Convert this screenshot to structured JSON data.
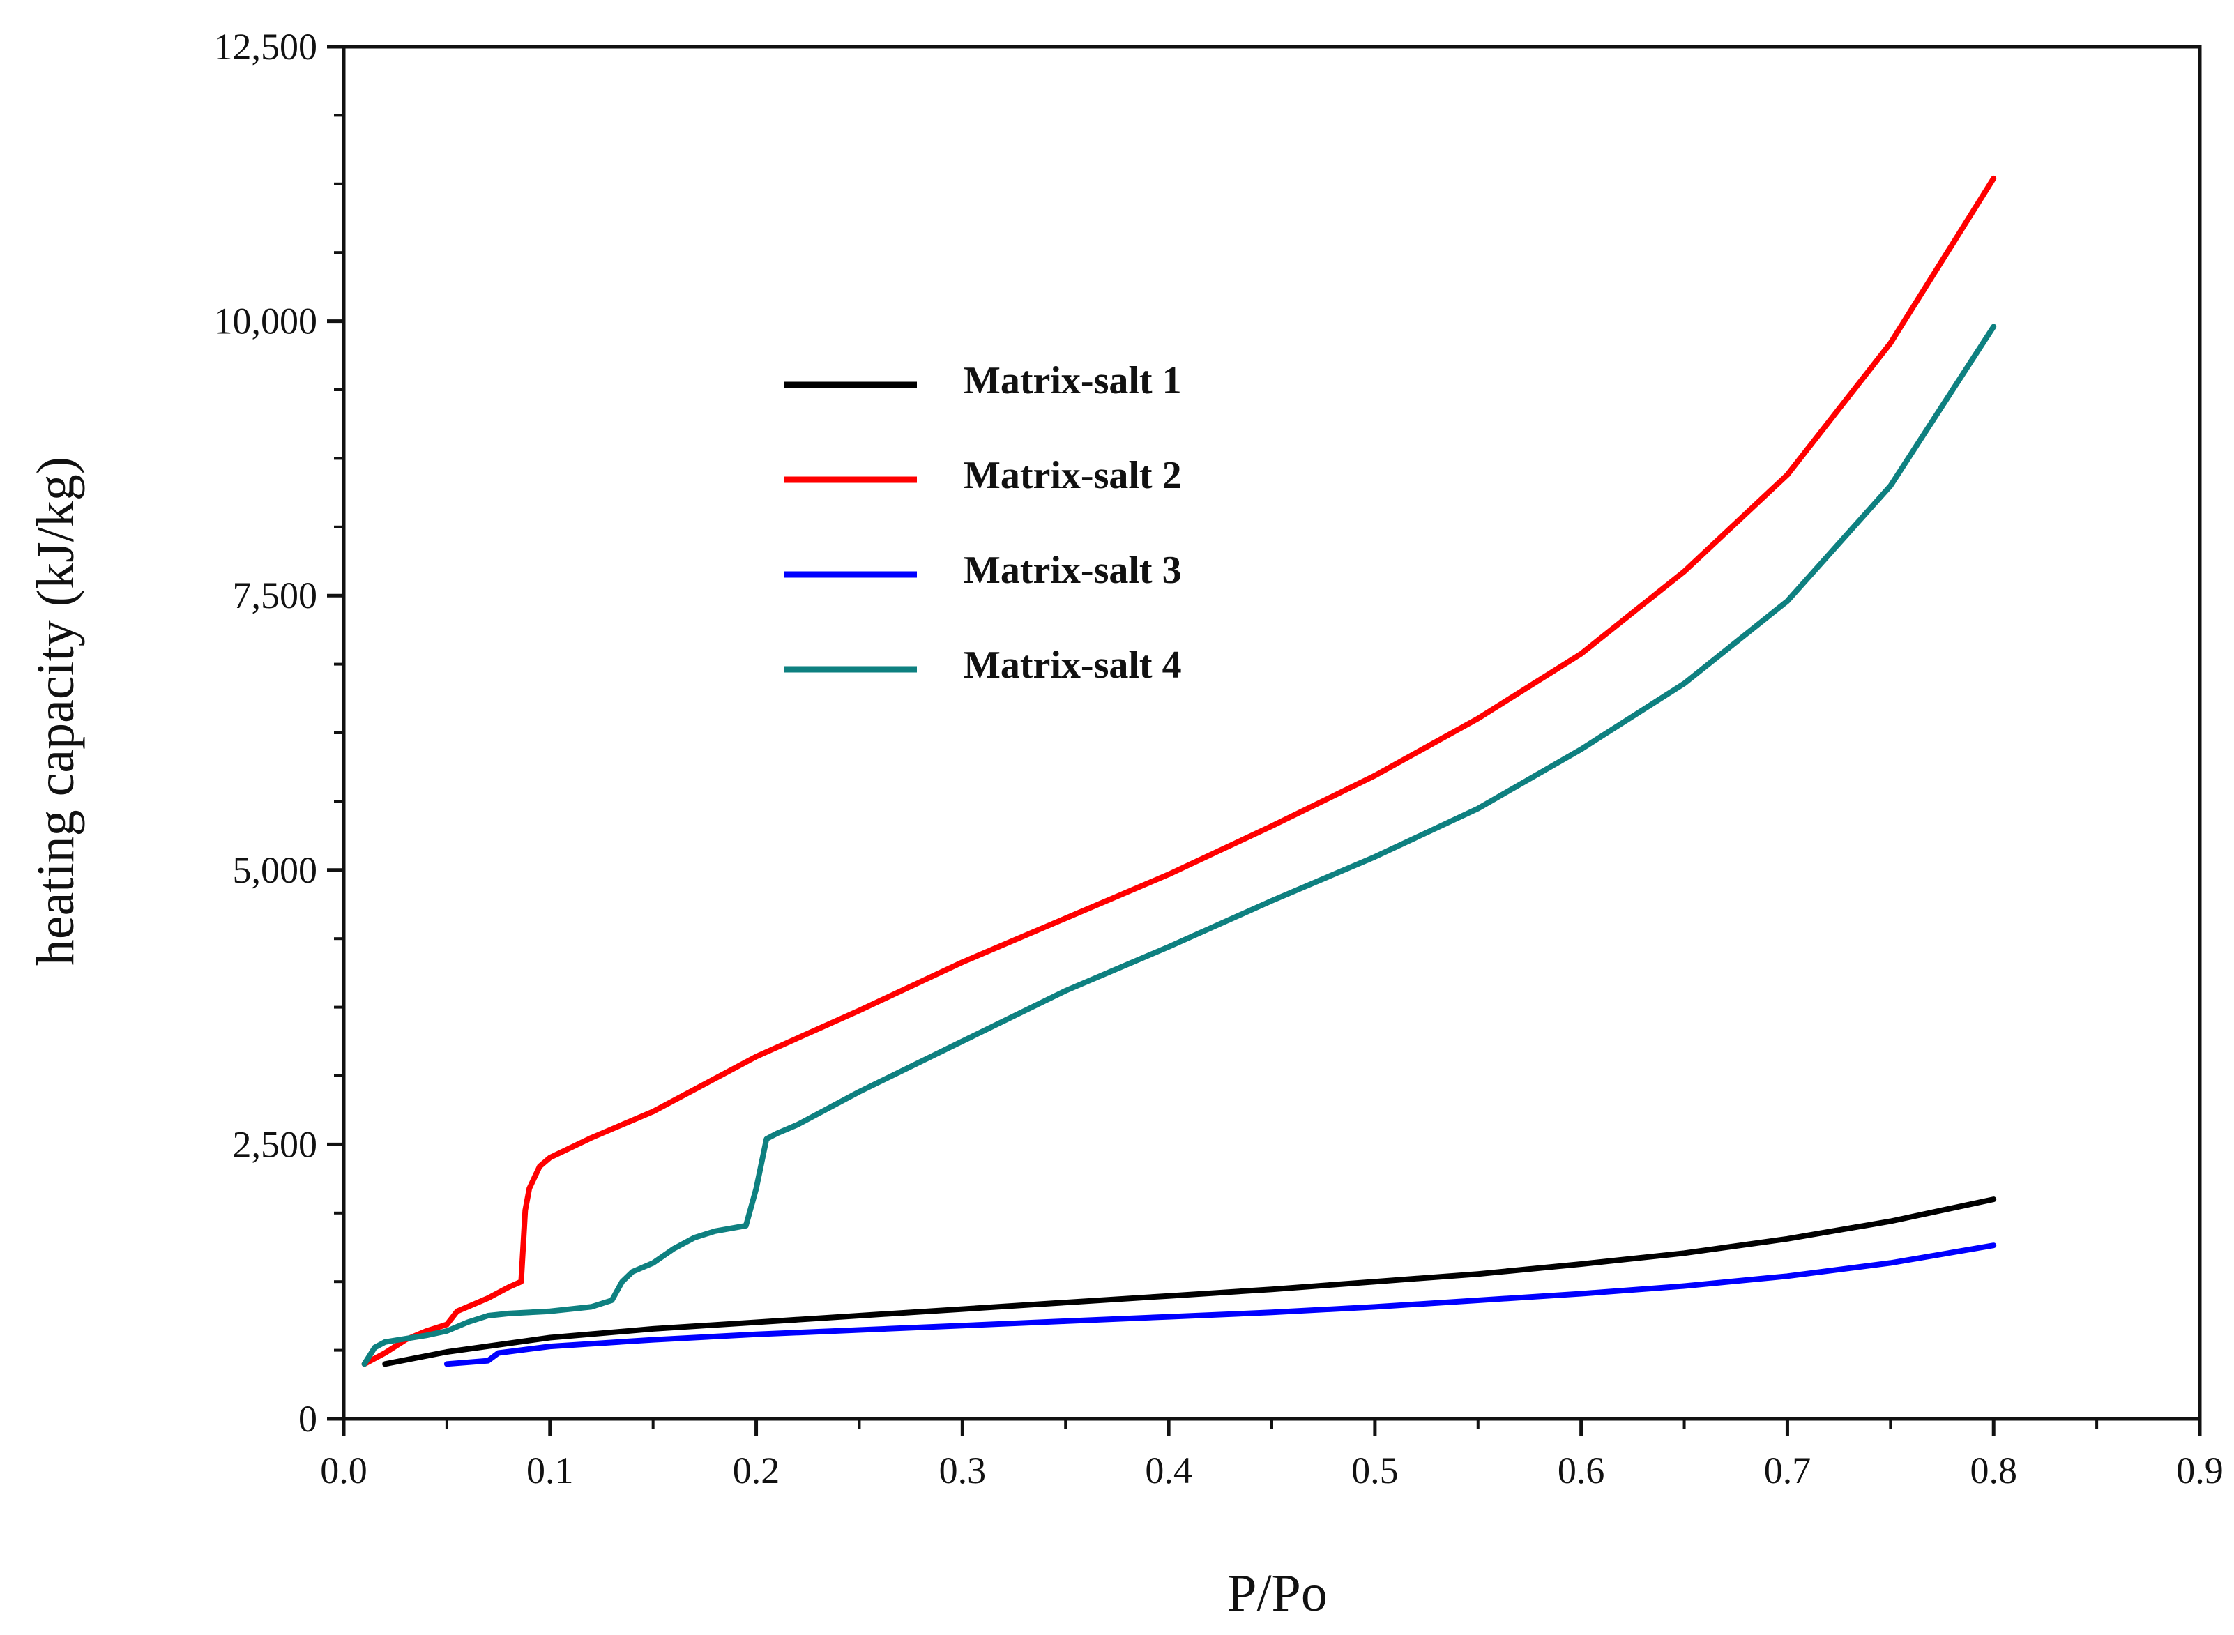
{
  "chart_data": {
    "type": "line",
    "title": "",
    "xlabel": "P/Po",
    "ylabel": "heating capacity (kJ/kg)",
    "xlim": [
      0,
      0.9
    ],
    "ylim": [
      0,
      12500
    ],
    "x_ticks": [
      {
        "value": 0.0,
        "label": "0.0"
      },
      {
        "value": 0.1,
        "label": "0.1"
      },
      {
        "value": 0.2,
        "label": "0.2"
      },
      {
        "value": 0.3,
        "label": "0.3"
      },
      {
        "value": 0.4,
        "label": "0.4"
      },
      {
        "value": 0.5,
        "label": "0.5"
      },
      {
        "value": 0.6,
        "label": "0.6"
      },
      {
        "value": 0.7,
        "label": "0.7"
      },
      {
        "value": 0.8,
        "label": "0.8"
      },
      {
        "value": 0.9,
        "label": "0.9"
      }
    ],
    "y_ticks": [
      {
        "value": 0,
        "label": "0"
      },
      {
        "value": 2500,
        "label": "2,500"
      },
      {
        "value": 5000,
        "label": "5,000"
      },
      {
        "value": 7500,
        "label": "7,500"
      },
      {
        "value": 10000,
        "label": "10,000"
      },
      {
        "value": 12500,
        "label": "12,500"
      }
    ],
    "grid": false,
    "legend_position": "upper-left-center",
    "series": [
      {
        "name": "Matrix-salt 1",
        "color": "#000000",
        "x": [
          0.02,
          0.05,
          0.1,
          0.15,
          0.2,
          0.25,
          0.3,
          0.35,
          0.4,
          0.45,
          0.5,
          0.55,
          0.6,
          0.65,
          0.7,
          0.75,
          0.8
        ],
        "y": [
          500,
          610,
          740,
          820,
          880,
          940,
          1000,
          1060,
          1120,
          1180,
          1250,
          1320,
          1410,
          1510,
          1640,
          1800,
          2000
        ]
      },
      {
        "name": "Matrix-salt 2",
        "color": "#ff0000",
        "x": [
          0.01,
          0.02,
          0.03,
          0.04,
          0.05,
          0.055,
          0.06,
          0.07,
          0.08,
          0.086,
          0.088,
          0.09,
          0.095,
          0.1,
          0.12,
          0.15,
          0.2,
          0.25,
          0.3,
          0.35,
          0.4,
          0.45,
          0.5,
          0.55,
          0.6,
          0.65,
          0.7,
          0.75,
          0.8
        ],
        "y": [
          500,
          600,
          720,
          800,
          860,
          980,
          1020,
          1100,
          1200,
          1250,
          1900,
          2100,
          2300,
          2380,
          2560,
          2800,
          3300,
          3720,
          4160,
          4560,
          4960,
          5400,
          5860,
          6380,
          6970,
          7720,
          8600,
          9800,
          11300
        ]
      },
      {
        "name": "Matrix-salt 3",
        "color": "#0000ff",
        "x": [
          0.05,
          0.07,
          0.075,
          0.1,
          0.15,
          0.2,
          0.25,
          0.3,
          0.35,
          0.4,
          0.45,
          0.5,
          0.55,
          0.6,
          0.65,
          0.7,
          0.75,
          0.8
        ],
        "y": [
          500,
          530,
          600,
          660,
          720,
          770,
          810,
          850,
          890,
          930,
          970,
          1020,
          1080,
          1140,
          1210,
          1300,
          1420,
          1580
        ]
      },
      {
        "name": "Matrix-salt 4",
        "color": "#0e8080",
        "x": [
          0.01,
          0.015,
          0.02,
          0.03,
          0.04,
          0.05,
          0.06,
          0.07,
          0.08,
          0.1,
          0.12,
          0.13,
          0.135,
          0.14,
          0.15,
          0.16,
          0.17,
          0.18,
          0.195,
          0.2,
          0.205,
          0.21,
          0.22,
          0.25,
          0.3,
          0.35,
          0.4,
          0.45,
          0.5,
          0.55,
          0.6,
          0.65,
          0.7,
          0.75,
          0.8
        ],
        "y": [
          500,
          650,
          700,
          730,
          760,
          800,
          880,
          940,
          960,
          980,
          1020,
          1080,
          1250,
          1340,
          1420,
          1550,
          1650,
          1710,
          1760,
          2100,
          2550,
          2600,
          2680,
          2980,
          3440,
          3900,
          4300,
          4720,
          5120,
          5560,
          6100,
          6700,
          7450,
          8500,
          9950
        ]
      }
    ]
  }
}
